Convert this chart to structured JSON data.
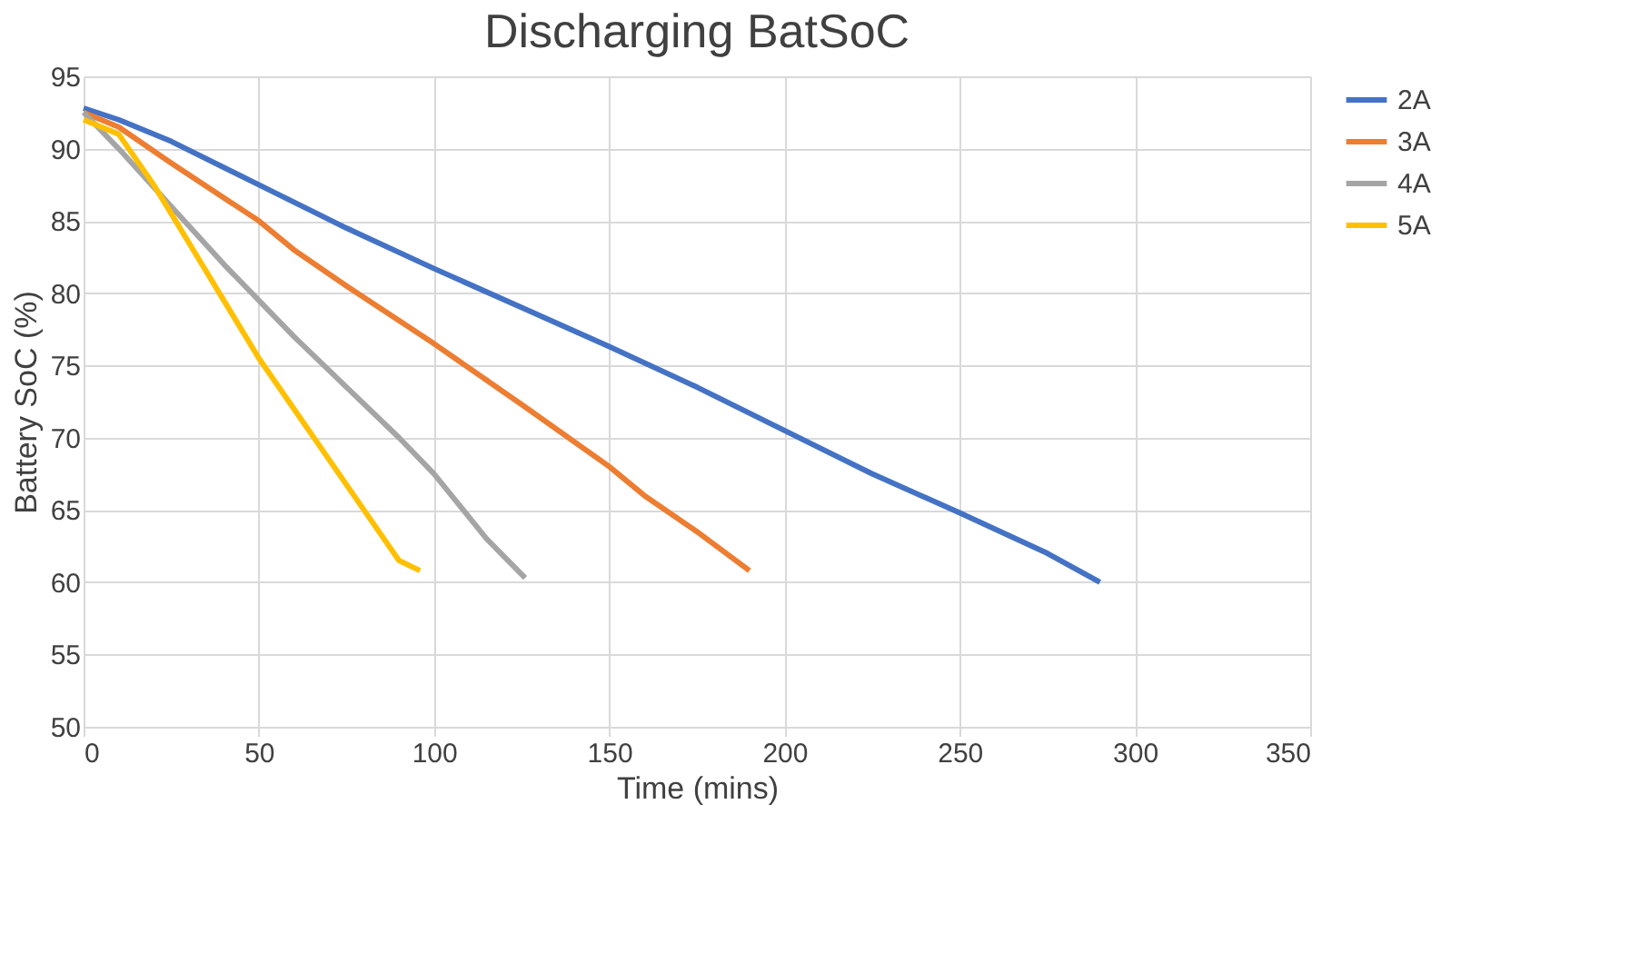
{
  "chart_data": {
    "type": "line",
    "title": "Discharging BatSoC",
    "xlabel": "Time (mins)",
    "ylabel": "Battery SoC (%)",
    "xlim": [
      0,
      350
    ],
    "xticks": [
      0,
      50,
      100,
      150,
      200,
      250,
      300,
      350
    ],
    "ylim": [
      50,
      95
    ],
    "yticks": [
      50,
      55,
      60,
      65,
      70,
      75,
      80,
      85,
      90,
      95
    ],
    "grid": true,
    "legend": "right",
    "marker": "none",
    "line_style": "solid",
    "series": [
      {
        "name": "2A",
        "color": "#4472c4",
        "x": [
          0,
          10,
          25,
          50,
          75,
          100,
          125,
          150,
          175,
          200,
          225,
          250,
          275,
          290
        ],
        "values": [
          92.8,
          92,
          90.5,
          87.5,
          84.5,
          81.7,
          79,
          76.3,
          73.5,
          70.5,
          67.5,
          64.8,
          62,
          60
        ]
      },
      {
        "name": "3A",
        "color": "#ed7d31",
        "x": [
          0,
          10,
          25,
          50,
          60,
          75,
          100,
          125,
          150,
          160,
          175,
          190
        ],
        "values": [
          92.5,
          91.5,
          89,
          85,
          83,
          80.5,
          76.5,
          72.3,
          68,
          66,
          63.5,
          60.8
        ]
      },
      {
        "name": "4A",
        "color": "#a5a5a5",
        "x": [
          0,
          10,
          25,
          40,
          50,
          60,
          75,
          90,
          100,
          115,
          126
        ],
        "values": [
          92.5,
          90,
          86,
          82,
          79.5,
          77,
          73.5,
          70,
          67.5,
          63,
          60.3
        ]
      },
      {
        "name": "5A",
        "color": "#ffc000",
        "x": [
          0,
          10,
          20,
          30,
          40,
          50,
          60,
          70,
          80,
          90,
          96
        ],
        "values": [
          92,
          91,
          87.5,
          83.5,
          79.5,
          75.5,
          72,
          68.5,
          65,
          61.5,
          60.8
        ]
      }
    ]
  }
}
